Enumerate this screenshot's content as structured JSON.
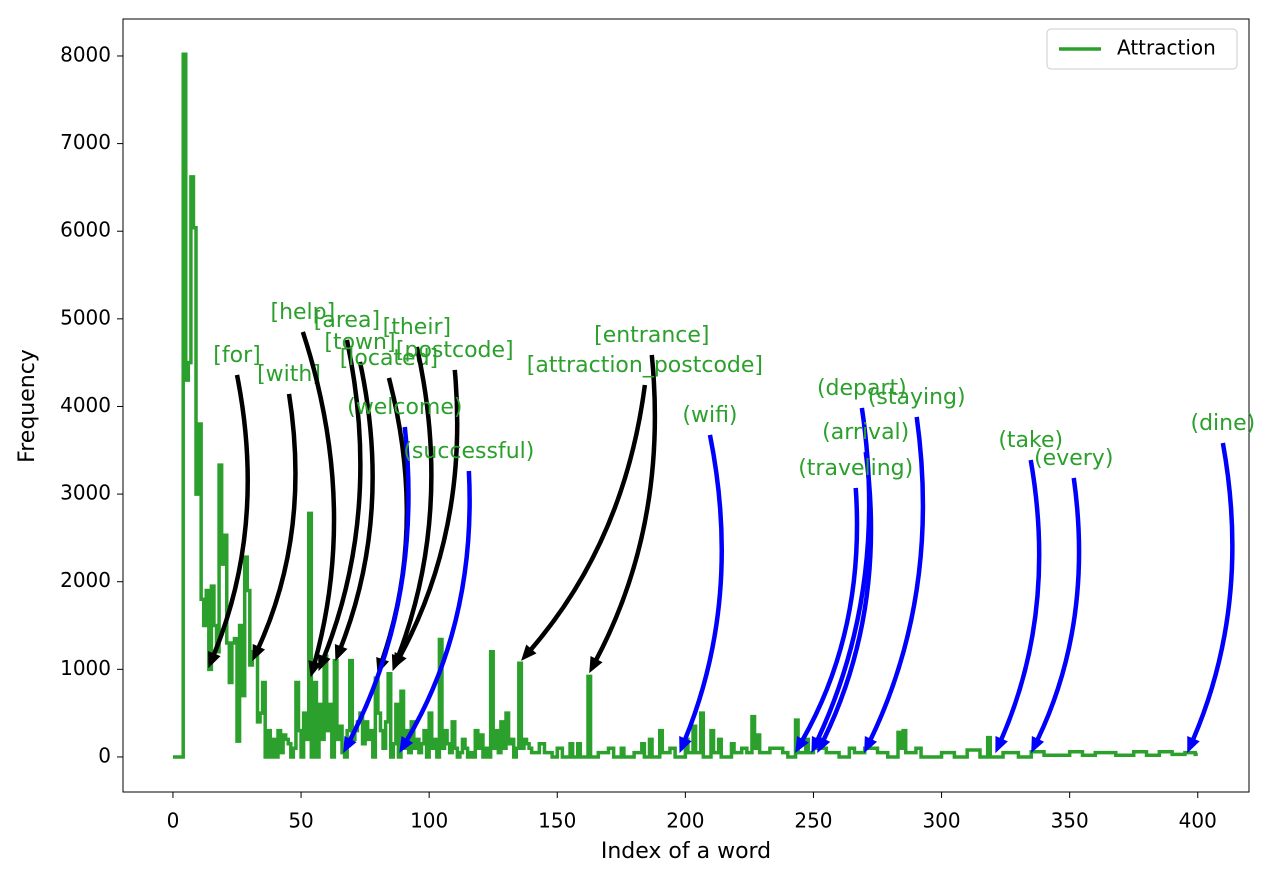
{
  "chart_data": {
    "type": "line",
    "step": true,
    "x_label": "Index of a word",
    "y_label": "Frequency",
    "xlim": [
      -19.5,
      420
    ],
    "ylim": [
      -400,
      8422
    ],
    "xticks": [
      0,
      50,
      100,
      150,
      200,
      250,
      300,
      350,
      400
    ],
    "yticks": [
      0,
      1000,
      2000,
      3000,
      4000,
      5000,
      6000,
      7000,
      8000
    ],
    "grid": false,
    "legend": "upper right",
    "series": [
      {
        "name": "Attraction",
        "color": "#2ca02c",
        "x": [
          0,
          1,
          2,
          3,
          4,
          5,
          6,
          7,
          8,
          9,
          10,
          11,
          12,
          13,
          14,
          15,
          16,
          17,
          18,
          19,
          20,
          21,
          22,
          23,
          24,
          25,
          26,
          27,
          28,
          29,
          30,
          31,
          32,
          33,
          34,
          35,
          36,
          37,
          38,
          39,
          40,
          41,
          42,
          43,
          44,
          45,
          46,
          47,
          48,
          49,
          50,
          51,
          52,
          53,
          54,
          55,
          56,
          57,
          58,
          59,
          60,
          61,
          62,
          63,
          64,
          65,
          66,
          67,
          68,
          69,
          70,
          71,
          72,
          73,
          74,
          75,
          76,
          77,
          78,
          79,
          80,
          81,
          82,
          83,
          84,
          85,
          86,
          87,
          88,
          89,
          90,
          91,
          92,
          93,
          94,
          95,
          96,
          97,
          98,
          99,
          100,
          101,
          102,
          103,
          104,
          105,
          106,
          107,
          108,
          109,
          110,
          111,
          112,
          113,
          114,
          115,
          116,
          117,
          118,
          119,
          120,
          121,
          122,
          123,
          124,
          125,
          126,
          127,
          128,
          129,
          130,
          131,
          132,
          133,
          134,
          135,
          136,
          137,
          138,
          139,
          140,
          143,
          145,
          148,
          150,
          152,
          155,
          156,
          158,
          159,
          162,
          163,
          166,
          170,
          172,
          175,
          176,
          180,
          183,
          184,
          186,
          187,
          190,
          191,
          194,
          196,
          200,
          201,
          203,
          204,
          206,
          207,
          210,
          211,
          213,
          214,
          218,
          219,
          222,
          224,
          226,
          227,
          228,
          229,
          233,
          238,
          240,
          243,
          244,
          247,
          248,
          250,
          255,
          260,
          264,
          266,
          270,
          275,
          279,
          283,
          284,
          285,
          286,
          290,
          292,
          300,
          305,
          310,
          315,
          318,
          319,
          324,
          330,
          335,
          340,
          350,
          355,
          360,
          368,
          375,
          380,
          385,
          390,
          395,
          399
        ],
        "values": [
          0,
          0,
          0,
          0,
          8020,
          4300,
          4500,
          6620,
          6040,
          3000,
          3800,
          1800,
          1500,
          1900,
          1000,
          1950,
          1500,
          1200,
          3330,
          2200,
          2530,
          1300,
          850,
          1300,
          1350,
          180,
          1500,
          700,
          2280,
          1900,
          1050,
          1200,
          1150,
          400,
          500,
          850,
          0,
          300,
          0,
          200,
          0,
          300,
          50,
          250,
          200,
          150,
          0,
          100,
          850,
          300,
          0,
          500,
          200,
          2780,
          0,
          850,
          0,
          600,
          200,
          1150,
          300,
          600,
          0,
          1100,
          200,
          350,
          50,
          0,
          300,
          1100,
          200,
          300,
          400,
          500,
          150,
          400,
          200,
          300,
          0,
          900,
          500,
          300,
          100,
          400,
          950,
          0,
          150,
          600,
          0,
          750,
          100,
          300,
          50,
          400,
          100,
          200,
          50,
          150,
          300,
          0,
          500,
          100,
          200,
          0,
          1340,
          100,
          300,
          150,
          50,
          400,
          100,
          0,
          50,
          200,
          100,
          0,
          50,
          0,
          300,
          100,
          250,
          0,
          100,
          0,
          1200,
          100,
          300,
          50,
          400,
          100,
          500,
          150,
          200,
          0,
          100,
          1070,
          100,
          200,
          150,
          100,
          50,
          150,
          50,
          0,
          100,
          0,
          150,
          0,
          150,
          0,
          920,
          0,
          50,
          100,
          0,
          100,
          0,
          50,
          150,
          0,
          200,
          0,
          300,
          50,
          100,
          0,
          200,
          50,
          350,
          50,
          500,
          0,
          300,
          50,
          200,
          0,
          150,
          50,
          100,
          50,
          460,
          100,
          250,
          50,
          100,
          50,
          0,
          420,
          50,
          200,
          50,
          100,
          50,
          0,
          100,
          50,
          100,
          50,
          0,
          280,
          100,
          300,
          50,
          100,
          0,
          50,
          0,
          80,
          0,
          220,
          0,
          50,
          0,
          60,
          20,
          60,
          20,
          50,
          20,
          60,
          20,
          60,
          30,
          50,
          30
        ]
      }
    ],
    "annotations": [
      {
        "text": "[for]",
        "color": "black",
        "xy": [
          14.0,
          1027
        ],
        "xytext": [
          25.0,
          4360
        ]
      },
      {
        "text": "[with]",
        "color": "black",
        "xy": [
          31.2,
          1107
        ],
        "xytext": [
          45.3,
          4143
        ]
      },
      {
        "text": "[help]",
        "color": "black",
        "xy": [
          53.9,
          924
        ],
        "xytext": [
          50.7,
          4850
        ]
      },
      {
        "text": "[area]",
        "color": "black",
        "xy": [
          57.0,
          993
        ],
        "xytext": [
          67.9,
          4759
        ]
      },
      {
        "text": "[town]",
        "color": "black",
        "xy": [
          63.6,
          1107
        ],
        "xytext": [
          73.0,
          4508
        ]
      },
      {
        "text": "[located]",
        "color": "black",
        "xy": [
          80.0,
          959
        ],
        "xytext": [
          84.3,
          4325
        ]
      },
      {
        "text": "[their]",
        "color": "black",
        "xy": [
          85.9,
          993
        ],
        "xytext": [
          95.2,
          4679
        ]
      },
      {
        "text": "[postcode]",
        "color": "black",
        "xy": [
          86.2,
          1016
        ],
        "xytext": [
          110.0,
          4417
        ]
      },
      {
        "text": "(welcome)",
        "color": "blue",
        "xy": [
          66.7,
          57
        ],
        "xytext": [
          90.5,
          3766
        ]
      },
      {
        "text": "(successful)",
        "color": "blue",
        "xy": [
          88.6,
          57
        ],
        "xytext": [
          115.5,
          3264
        ]
      },
      {
        "text": "[entrance]",
        "color": "black",
        "xy": [
          162.7,
          970
        ],
        "xytext": [
          186.9,
          4588
        ]
      },
      {
        "text": "[attraction_postcode]",
        "color": "black",
        "xy": [
          136.2,
          1107
        ],
        "xytext": [
          184.2,
          4245
        ]
      },
      {
        "text": "(wifi)",
        "color": "blue",
        "xy": [
          197.9,
          57
        ],
        "xytext": [
          209.6,
          3675
        ]
      },
      {
        "text": "(depart)",
        "color": "blue",
        "xy": [
          249.4,
          57
        ],
        "xytext": [
          268.9,
          3983
        ]
      },
      {
        "text": "(arrival)",
        "color": "blue",
        "xy": [
          251.7,
          57
        ],
        "xytext": [
          270.4,
          3481
        ]
      },
      {
        "text": "(traveling)",
        "color": "blue",
        "xy": [
          243.1,
          57
        ],
        "xytext": [
          266.5,
          3070
        ]
      },
      {
        "text": "(staying)",
        "color": "blue",
        "xy": [
          270.0,
          57
        ],
        "xytext": [
          290.3,
          3880
        ]
      },
      {
        "text": "(take)",
        "color": "blue",
        "xy": [
          321.2,
          57
        ],
        "xytext": [
          334.8,
          3389
        ]
      },
      {
        "text": "(every)",
        "color": "blue",
        "xy": [
          335.2,
          57
        ],
        "xytext": [
          351.6,
          3184
        ]
      },
      {
        "text": "(dine)",
        "color": "blue",
        "xy": [
          396.1,
          57
        ],
        "xytext": [
          409.8,
          3583
        ]
      }
    ]
  }
}
